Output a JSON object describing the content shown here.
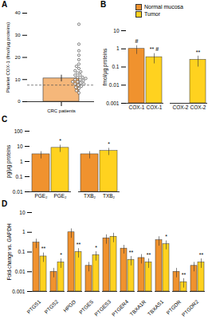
{
  "chart_data": [
    {
      "type": "bar",
      "title": "A",
      "categories": [
        "CRC patients"
      ],
      "values": [
        10.5
      ],
      "errors": [
        1.5
      ],
      "points": [
        4,
        5,
        6,
        6.5,
        7,
        7.5,
        8,
        8,
        8.5,
        9,
        9,
        9.5,
        10,
        10,
        10.5,
        11,
        11,
        12,
        12,
        13,
        13.5,
        14,
        15,
        16,
        17,
        19,
        21,
        23,
        26,
        35
      ],
      "reference_line": 7.5,
      "color": "#f5b77a",
      "ylim": [
        0,
        40
      ],
      "yticks": [
        0,
        10,
        20,
        30,
        40
      ],
      "ylabel": "Platelet COX-1 (fmol/µg proteins)"
    },
    {
      "type": "bar",
      "title": "B",
      "log": "y",
      "legend": "top",
      "categories": [
        "COX-1",
        "COX-2"
      ],
      "series": [
        {
          "name": "Normal mucosa",
          "color": "#f0922e",
          "values": [
            1.0,
            null
          ],
          "errors": [
            0.5,
            null
          ],
          "annotations": [
            "#",
            null
          ]
        },
        {
          "name": "Tumor",
          "color": "#ffd21f",
          "values": [
            0.35,
            0.25
          ],
          "errors": [
            0.2,
            0.15
          ],
          "annotations": [
            "** #",
            "**"
          ]
        }
      ],
      "ylim": [
        0.001,
        10
      ],
      "yticks": [
        0.001,
        0.01,
        0.1,
        1,
        10
      ],
      "ylabel": "fmol/µg proteins"
    },
    {
      "type": "bar",
      "title": "C",
      "log": "y",
      "categories": [
        "PGE₂",
        "TXB₂"
      ],
      "series": [
        {
          "name": "Normal mucosa",
          "color": "#f0922e",
          "values": [
            3,
            3
          ],
          "errors": [
            1.5,
            1.5
          ],
          "annotations": [
            null,
            null
          ]
        },
        {
          "name": "Tumor",
          "color": "#ffd21f",
          "values": [
            8,
            5
          ],
          "errors": [
            4,
            2.5
          ],
          "annotations": [
            "*",
            "*"
          ]
        }
      ],
      "ylim": [
        0.01,
        100
      ],
      "yticks": [
        0.01,
        0.1,
        1,
        10,
        100
      ],
      "ylabel": "pg/µg proteins"
    },
    {
      "type": "bar",
      "title": "D",
      "log": "y",
      "categories": [
        "PTGS1",
        "PTGS2",
        "HPGD",
        "PTGES",
        "PTGES3",
        "PTGER4",
        "TBXA1R",
        "TBXAS1",
        "PTGDR",
        "PTGDR2"
      ],
      "series": [
        {
          "name": "Normal mucosa",
          "color": "#f0922e",
          "values": [
            0.3,
            0.01,
            1.0,
            0.02,
            0.5,
            0.15,
            0.05,
            0.4,
            0.01,
            0.02
          ],
          "errors": [
            0.15,
            0.005,
            0.5,
            0.01,
            0.25,
            0.07,
            0.025,
            0.2,
            0.005,
            0.01
          ],
          "annotations": [
            null,
            null,
            null,
            null,
            null,
            null,
            null,
            null,
            null,
            null
          ]
        },
        {
          "name": "Tumor",
          "color": "#ffd21f",
          "values": [
            0.06,
            0.03,
            0.1,
            0.07,
            0.6,
            0.04,
            0.03,
            0.25,
            0.003,
            0.03
          ],
          "errors": [
            0.03,
            0.015,
            0.05,
            0.035,
            0.3,
            0.02,
            0.015,
            0.12,
            0.0015,
            0.015
          ],
          "annotations": [
            "**",
            "*",
            "**",
            "*",
            null,
            "**",
            "**",
            "*",
            "**",
            "**"
          ]
        }
      ],
      "ylim": [
        0.001,
        10
      ],
      "yticks": [
        0.001,
        0.01,
        0.1,
        1,
        10
      ],
      "ylabel": "Fold-change vs. GAPDH"
    }
  ]
}
